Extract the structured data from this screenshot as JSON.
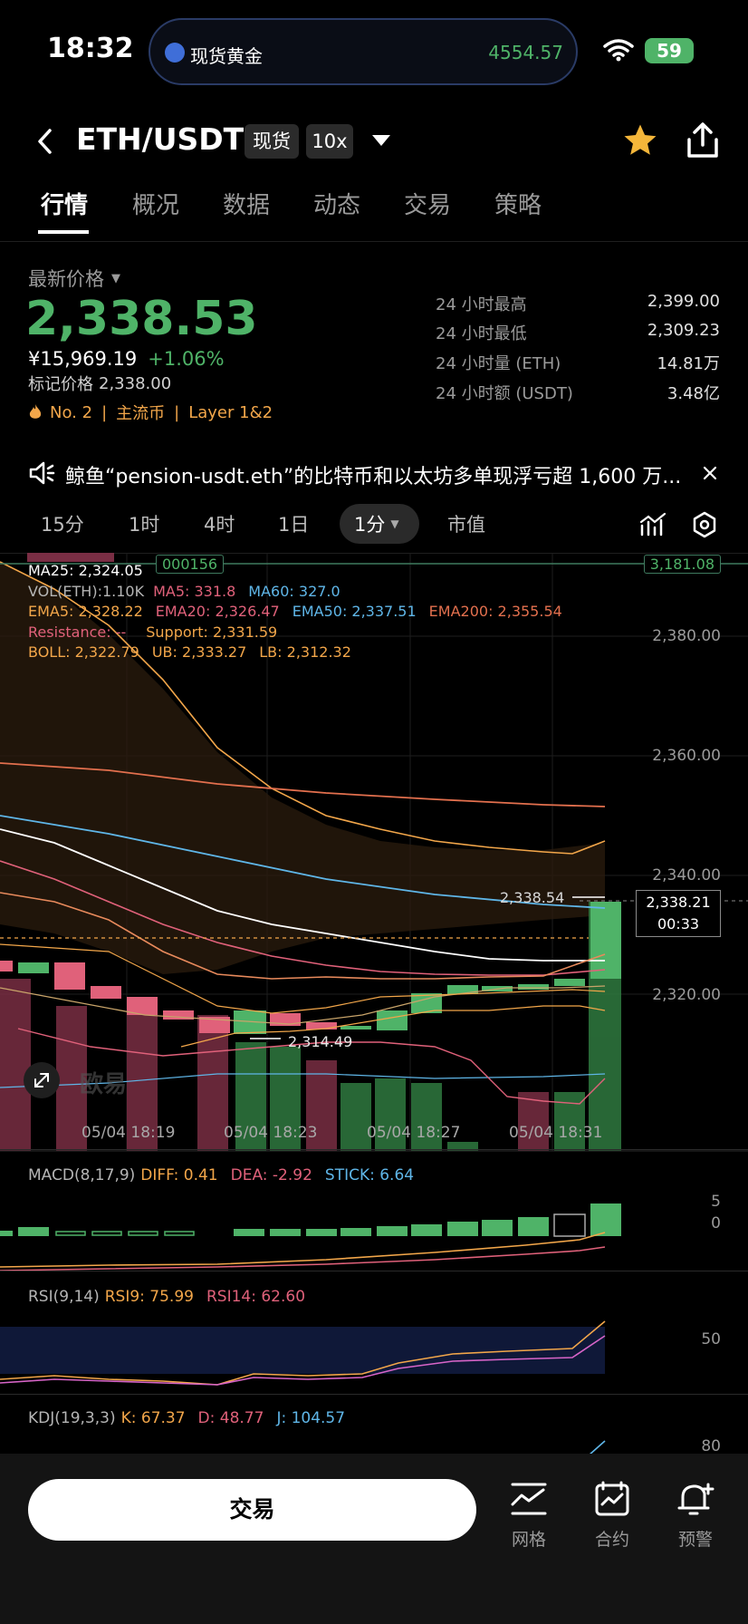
{
  "status_bar": {
    "time": "18:32",
    "pill_name": "现货黄金",
    "pill_value": "4554.57",
    "battery": "59"
  },
  "header": {
    "pair": "ETH/USDT",
    "tag_spot": "现货",
    "tag_leverage": "10x"
  },
  "tabs": [
    "行情",
    "概况",
    "数据",
    "动态",
    "交易",
    "策略"
  ],
  "price": {
    "label": "最新价格",
    "last": "2,338.53",
    "cny": "¥15,969.19",
    "change": "+1.06%",
    "mark_label": "标记价格",
    "mark": "2,338.00",
    "rank": "No. 2",
    "cat1": "主流币",
    "cat2": "Layer 1&2"
  },
  "stats": [
    {
      "label": "24 小时最高",
      "value": "2,399.00"
    },
    {
      "label": "24 小时最低",
      "value": "2,309.23"
    },
    {
      "label": "24 小时量 (ETH)",
      "value": "14.81万"
    },
    {
      "label": "24 小时额 (USDT)",
      "value": "3.48亿"
    }
  ],
  "news": "鲸鱼“pension-usdt.eth”的比特币和以太坊多单现浮亏超 1,600 万...",
  "timeframes": [
    "15分",
    "1时",
    "4时",
    "1日",
    "1分",
    "市值"
  ],
  "indicators": {
    "top_tag": "000156",
    "top_right_tag": "3,181.08",
    "ma25": "MA25: 2,324.05",
    "vol": "VOL(ETH):1.10K",
    "ma5": "MA5: 331.8",
    "ma60": "MA60: 327.0",
    "ema5": "EMA5: 2,328.22",
    "ema20": "EMA20: 2,326.47",
    "ema50": "EMA50: 2,337.51",
    "ema200": "EMA200: 2,355.54",
    "resistance": "Resistance: --",
    "support": "Support: 2,331.59",
    "boll": "BOLL: 2,322.79",
    "ub": "UB: 2,333.27",
    "lb": "LB: 2,312.32"
  },
  "price_axis": [
    "2,380.00",
    "2,360.00",
    "2,340.00",
    "2,320.00"
  ],
  "last_marker": {
    "price": "2,338.21",
    "countdown": "00:33",
    "line_label": "2,338.54",
    "low_label": "2,314.49"
  },
  "time_axis": [
    "05/04 18:19",
    "05/04 18:23",
    "05/04 18:27",
    "05/04 18:31"
  ],
  "macd": {
    "title": "MACD(8,17,9)",
    "diff": "DIFF: 0.41",
    "dea": "DEA: -2.92",
    "stick": "STICK: 6.64",
    "axis": [
      "5",
      "0"
    ]
  },
  "rsi": {
    "title": "RSI(9,14)",
    "rsi9": "RSI9: 75.99",
    "rsi14": "RSI14: 62.60",
    "axis": "50"
  },
  "kdj": {
    "title": "KDJ(19,3,3)",
    "k": "K: 67.37",
    "d": "D: 48.77",
    "j": "J: 104.57",
    "axis": "80"
  },
  "watermark": "欧易",
  "bottom": {
    "trade": "交易",
    "grid": "网格",
    "contract": "合约",
    "alert": "预警"
  }
}
